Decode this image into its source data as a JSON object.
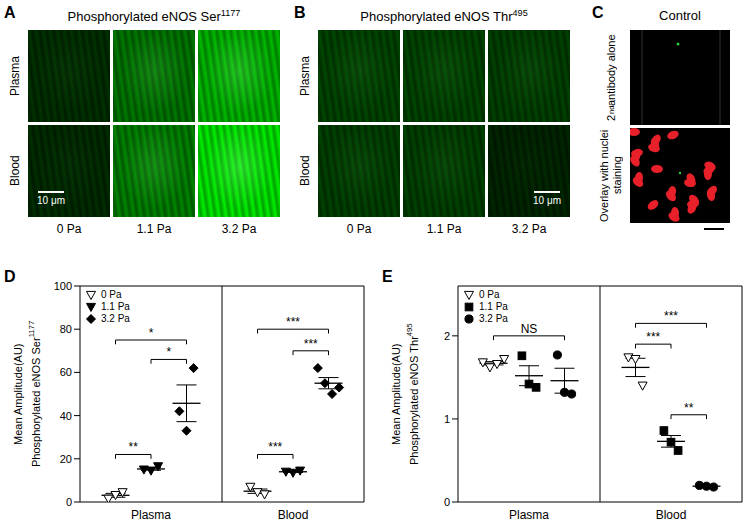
{
  "panels": [
    {
      "label": "A",
      "title": "Phosphorylated eNOS Ser1177",
      "rows": [
        "Plasma",
        "Blood"
      ],
      "columns": [
        "0 Pa",
        "1.1 Pa",
        "3.2 Pa"
      ],
      "scale_bar": "10 μm"
    },
    {
      "label": "B",
      "title": "Phosphorylated eNOS Thr495",
      "rows": [
        "Plasma",
        "Blood"
      ],
      "columns": [
        "0 Pa",
        "1.1 Pa",
        "3.2 Pa"
      ],
      "scale_bar": "10 μm"
    },
    {
      "label": "C",
      "title": "Control",
      "rows": [
        "2nd antibody alone",
        "Overlay with nuclei staining"
      ]
    }
  ],
  "chart_data": [
    {
      "label": "D",
      "type": "scatter",
      "ylabel": [
        "Mean Amplitude(AU)",
        "Phosphorylated eNOS Ser1177"
      ],
      "xlim": [
        0,
        8
      ],
      "xticks": [
        {
          "value": 2,
          "label": "Plasma"
        },
        {
          "value": 6,
          "label": "Blood"
        }
      ],
      "ylim": [
        0,
        100
      ],
      "yticks": [
        0,
        20,
        40,
        60,
        80,
        100
      ],
      "legend": "upper left",
      "series": [
        {
          "name": "0 Pa",
          "marker": "triangle_down_open",
          "color": "#000000",
          "groups": [
            {
              "x": 1,
              "mean": 3.1,
              "sem": 0.9,
              "point_x": [
                0.8,
                1,
                1.2
              ],
              "values": [
                1.5,
                3.2,
                4.5
              ]
            },
            {
              "x": 5,
              "mean": 5,
              "sem": 1,
              "point_x": [
                4.8,
                5,
                5.2
              ],
              "values": [
                7,
                4.5,
                3.5
              ]
            }
          ]
        },
        {
          "name": "1.1 Pa",
          "marker": "triangle_down",
          "color": "#000000",
          "groups": [
            {
              "x": 2,
              "mean": 15.3,
              "sem": 0.6,
              "point_x": [
                1.8,
                2,
                2.2
              ],
              "values": [
                15,
                14.5,
                16.5
              ]
            },
            {
              "x": 6,
              "mean": 14,
              "sem": 0.3,
              "point_x": [
                5.8,
                6,
                6.2
              ],
              "values": [
                14,
                13.5,
                14.5
              ]
            }
          ]
        },
        {
          "name": "3.2 Pa",
          "marker": "diamond",
          "color": "#000000",
          "groups": [
            {
              "x": 3,
              "mean": 45.7,
              "sem": 8.5,
              "point_x": [
                2.8,
                3,
                3.2
              ],
              "values": [
                42,
                33,
                62
              ]
            },
            {
              "x": 7,
              "mean": 55,
              "sem": 2.6,
              "point_x": [
                6.7,
                6.9,
                7.1,
                7.3
              ],
              "values": [
                62,
                55,
                50,
                53
              ]
            }
          ]
        }
      ],
      "significance": [
        {
          "x": [
            1,
            2
          ],
          "y": 22,
          "label": "**"
        },
        {
          "x": [
            1,
            3
          ],
          "y": 75,
          "label": "*"
        },
        {
          "x": [
            2,
            3
          ],
          "y": 66,
          "label": "*"
        },
        {
          "x": [
            5,
            6
          ],
          "y": 22,
          "label": "***"
        },
        {
          "x": [
            5,
            7
          ],
          "y": 80,
          "label": "***"
        },
        {
          "x": [
            6,
            7
          ],
          "y": 70,
          "label": "***"
        }
      ]
    },
    {
      "label": "E",
      "type": "scatter",
      "ylabel": [
        "Mean Amplitude(AU)",
        "Phosphorylated eNOS Thr495"
      ],
      "xlim": [
        0,
        8
      ],
      "xticks": [
        {
          "value": 2,
          "label": "Plasma"
        },
        {
          "value": 6,
          "label": "Blood"
        }
      ],
      "ylim": [
        0,
        2.6
      ],
      "yticks": [
        0,
        1,
        2
      ],
      "legend": "upper left",
      "series": [
        {
          "name": "0 Pa",
          "marker": "triangle_down_open",
          "color": "#000000",
          "groups": [
            {
              "x": 1,
              "mean": 1.67,
              "sem": 0.02,
              "point_x": [
                0.7,
                0.9,
                1.1,
                1.3
              ],
              "values": [
                1.68,
                1.62,
                1.66,
                1.72
              ]
            },
            {
              "x": 5,
              "mean": 1.62,
              "sem": 0.11,
              "point_x": [
                4.8,
                5,
                5.2
              ],
              "values": [
                1.74,
                1.72,
                1.4
              ]
            }
          ]
        },
        {
          "name": "1.1 Pa",
          "marker": "square",
          "color": "#000000",
          "groups": [
            {
              "x": 2,
              "mean": 1.52,
              "sem": 0.12,
              "point_x": [
                1.8,
                2,
                2.2
              ],
              "values": [
                1.76,
                1.42,
                1.38
              ]
            },
            {
              "x": 6,
              "mean": 0.73,
              "sem": 0.07,
              "point_x": [
                5.8,
                6,
                6.2
              ],
              "values": [
                0.86,
                0.72,
                0.62
              ]
            }
          ]
        },
        {
          "name": "3.2 Pa",
          "marker": "circle",
          "color": "#000000",
          "groups": [
            {
              "x": 3,
              "mean": 1.46,
              "sem": 0.15,
              "point_x": [
                2.8,
                3,
                3.2
              ],
              "values": [
                1.77,
                1.32,
                1.3
              ]
            },
            {
              "x": 7,
              "mean": 0.19,
              "sem": 0.01,
              "point_x": [
                6.8,
                7,
                7.2
              ],
              "values": [
                0.2,
                0.19,
                0.18
              ]
            }
          ]
        }
      ],
      "significance": [
        {
          "x": [
            1,
            3
          ],
          "y": 2.0,
          "label": "NS"
        },
        {
          "x": [
            5,
            6
          ],
          "y": 1.9,
          "label": "***"
        },
        {
          "x": [
            5,
            7
          ],
          "y": 2.15,
          "label": "***"
        },
        {
          "x": [
            6,
            7
          ],
          "y": 1.05,
          "label": "**"
        }
      ]
    }
  ]
}
